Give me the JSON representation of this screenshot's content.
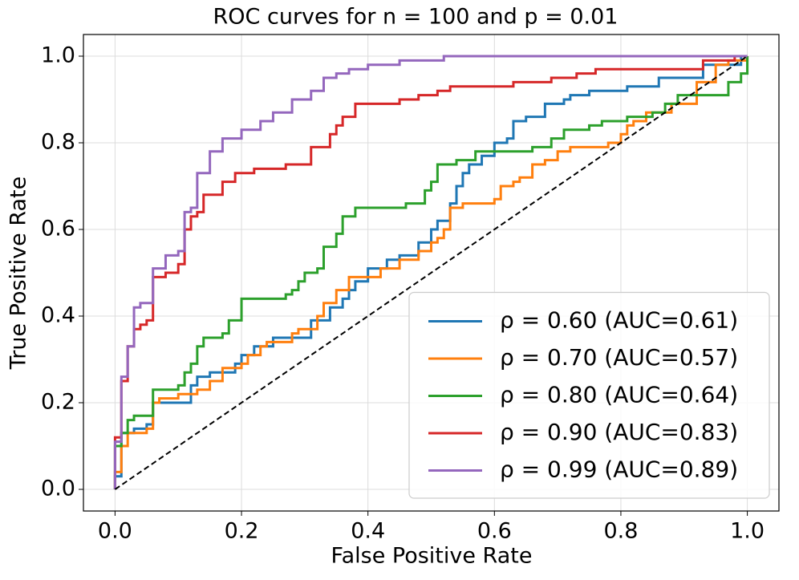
{
  "chart_data": {
    "type": "line",
    "title": "ROC curves for n = 100 and p = 0.01",
    "xlabel": "False Positive Rate",
    "ylabel": "True Positive Rate",
    "xlim": [
      -0.05,
      1.05
    ],
    "ylim": [
      -0.05,
      1.05
    ],
    "xticks": [
      {
        "value": 0,
        "label": "0.0"
      },
      {
        "value": 0.2,
        "label": "0.2"
      },
      {
        "value": 0.4,
        "label": "0.4"
      },
      {
        "value": 0.6,
        "label": "0.6"
      },
      {
        "value": 0.8,
        "label": "0.8"
      },
      {
        "value": 1,
        "label": "1.0"
      }
    ],
    "yticks": [
      {
        "value": 0,
        "label": "0.0"
      },
      {
        "value": 0.2,
        "label": "0.2"
      },
      {
        "value": 0.4,
        "label": "0.4"
      },
      {
        "value": 0.6,
        "label": "0.6"
      },
      {
        "value": 0.8,
        "label": "0.8"
      },
      {
        "value": 1,
        "label": "1.0"
      }
    ],
    "grid": true,
    "legend": "lower right",
    "reference_line": {
      "x": [
        0,
        1
      ],
      "values": [
        0,
        1
      ],
      "color": "#000000",
      "style": "dashed"
    },
    "series": [
      {
        "name": "ρ = 0.60 (AUC=0.61)",
        "color": "#1f77b4",
        "x": [
          0,
          0,
          0.01,
          0.01,
          0.03,
          0.03,
          0.05,
          0.05,
          0.06,
          0.06,
          0.12,
          0.12,
          0.13,
          0.13,
          0.15,
          0.15,
          0.19,
          0.19,
          0.2,
          0.2,
          0.22,
          0.22,
          0.25,
          0.25,
          0.31,
          0.31,
          0.34,
          0.34,
          0.36,
          0.36,
          0.37,
          0.37,
          0.38,
          0.38,
          0.4,
          0.4,
          0.43,
          0.43,
          0.45,
          0.45,
          0.48,
          0.48,
          0.5,
          0.5,
          0.51,
          0.51,
          0.53,
          0.53,
          0.54,
          0.54,
          0.55,
          0.55,
          0.56,
          0.56,
          0.58,
          0.58,
          0.6,
          0.6,
          0.62,
          0.62,
          0.63,
          0.63,
          0.65,
          0.65,
          0.68,
          0.68,
          0.71,
          0.71,
          0.72,
          0.72,
          0.75,
          0.75,
          0.81,
          0.81,
          0.86,
          0.86,
          0.93,
          0.93,
          0.99,
          0.99,
          1
        ],
        "values": [
          0,
          0.03,
          0.03,
          0.13,
          0.13,
          0.14,
          0.14,
          0.15,
          0.15,
          0.2,
          0.2,
          0.24,
          0.24,
          0.26,
          0.26,
          0.27,
          0.27,
          0.29,
          0.29,
          0.31,
          0.31,
          0.33,
          0.33,
          0.35,
          0.35,
          0.39,
          0.39,
          0.42,
          0.42,
          0.44,
          0.44,
          0.46,
          0.46,
          0.48,
          0.48,
          0.51,
          0.51,
          0.53,
          0.53,
          0.54,
          0.54,
          0.57,
          0.57,
          0.6,
          0.6,
          0.62,
          0.62,
          0.66,
          0.66,
          0.7,
          0.7,
          0.73,
          0.73,
          0.75,
          0.75,
          0.77,
          0.77,
          0.8,
          0.8,
          0.81,
          0.81,
          0.85,
          0.85,
          0.86,
          0.86,
          0.89,
          0.89,
          0.9,
          0.9,
          0.91,
          0.91,
          0.92,
          0.92,
          0.93,
          0.93,
          0.95,
          0.95,
          0.98,
          0.98,
          1,
          1
        ]
      },
      {
        "name": "ρ = 0.70 (AUC=0.57)",
        "color": "#ff7f0e",
        "x": [
          0,
          0,
          0.01,
          0.01,
          0.02,
          0.02,
          0.05,
          0.05,
          0.06,
          0.06,
          0.07,
          0.07,
          0.1,
          0.1,
          0.13,
          0.13,
          0.15,
          0.15,
          0.17,
          0.17,
          0.2,
          0.2,
          0.21,
          0.21,
          0.23,
          0.23,
          0.24,
          0.24,
          0.28,
          0.28,
          0.29,
          0.29,
          0.32,
          0.32,
          0.33,
          0.33,
          0.35,
          0.35,
          0.37,
          0.37,
          0.42,
          0.42,
          0.45,
          0.45,
          0.48,
          0.48,
          0.5,
          0.5,
          0.51,
          0.51,
          0.52,
          0.52,
          0.53,
          0.53,
          0.55,
          0.55,
          0.6,
          0.6,
          0.61,
          0.61,
          0.63,
          0.63,
          0.64,
          0.64,
          0.66,
          0.66,
          0.68,
          0.68,
          0.7,
          0.7,
          0.72,
          0.72,
          0.78,
          0.78,
          0.8,
          0.8,
          0.81,
          0.81,
          0.82,
          0.82,
          0.84,
          0.84,
          0.88,
          0.88,
          0.92,
          0.92,
          0.95,
          0.95,
          0.97,
          0.97,
          1,
          1
        ],
        "values": [
          0,
          0.04,
          0.04,
          0.1,
          0.1,
          0.13,
          0.13,
          0.14,
          0.14,
          0.2,
          0.2,
          0.21,
          0.21,
          0.22,
          0.22,
          0.23,
          0.23,
          0.25,
          0.25,
          0.28,
          0.28,
          0.29,
          0.29,
          0.31,
          0.31,
          0.33,
          0.33,
          0.34,
          0.34,
          0.36,
          0.36,
          0.37,
          0.37,
          0.4,
          0.4,
          0.43,
          0.43,
          0.46,
          0.46,
          0.49,
          0.49,
          0.51,
          0.51,
          0.53,
          0.53,
          0.55,
          0.55,
          0.57,
          0.57,
          0.58,
          0.58,
          0.6,
          0.6,
          0.65,
          0.65,
          0.66,
          0.66,
          0.67,
          0.67,
          0.7,
          0.7,
          0.71,
          0.71,
          0.72,
          0.72,
          0.75,
          0.75,
          0.76,
          0.76,
          0.78,
          0.78,
          0.79,
          0.79,
          0.8,
          0.8,
          0.82,
          0.82,
          0.84,
          0.84,
          0.85,
          0.85,
          0.87,
          0.87,
          0.89,
          0.89,
          0.94,
          0.94,
          0.98,
          0.98,
          0.99,
          0.99,
          1
        ]
      },
      {
        "name": "ρ = 0.80 (AUC=0.64)",
        "color": "#2ca02c",
        "x": [
          0,
          0,
          0.01,
          0.01,
          0.02,
          0.02,
          0.03,
          0.03,
          0.06,
          0.06,
          0.1,
          0.1,
          0.11,
          0.11,
          0.12,
          0.12,
          0.13,
          0.13,
          0.14,
          0.14,
          0.17,
          0.17,
          0.18,
          0.18,
          0.2,
          0.2,
          0.27,
          0.27,
          0.28,
          0.28,
          0.29,
          0.29,
          0.3,
          0.3,
          0.32,
          0.32,
          0.33,
          0.33,
          0.35,
          0.35,
          0.36,
          0.36,
          0.38,
          0.38,
          0.46,
          0.46,
          0.49,
          0.49,
          0.5,
          0.5,
          0.51,
          0.51,
          0.54,
          0.54,
          0.57,
          0.57,
          0.61,
          0.61,
          0.66,
          0.66,
          0.69,
          0.69,
          0.71,
          0.71,
          0.75,
          0.75,
          0.77,
          0.77,
          0.81,
          0.81,
          0.85,
          0.85,
          0.87,
          0.87,
          0.89,
          0.89,
          0.97,
          0.97,
          0.99,
          0.99,
          1,
          1
        ],
        "values": [
          0,
          0.1,
          0.1,
          0.13,
          0.13,
          0.16,
          0.16,
          0.17,
          0.17,
          0.23,
          0.23,
          0.24,
          0.24,
          0.27,
          0.27,
          0.29,
          0.29,
          0.33,
          0.33,
          0.35,
          0.35,
          0.36,
          0.36,
          0.39,
          0.39,
          0.44,
          0.44,
          0.45,
          0.45,
          0.46,
          0.46,
          0.48,
          0.48,
          0.5,
          0.5,
          0.51,
          0.51,
          0.56,
          0.56,
          0.59,
          0.59,
          0.63,
          0.63,
          0.65,
          0.65,
          0.66,
          0.66,
          0.69,
          0.69,
          0.71,
          0.71,
          0.75,
          0.75,
          0.76,
          0.76,
          0.78,
          0.78,
          0.78,
          0.78,
          0.79,
          0.79,
          0.81,
          0.81,
          0.83,
          0.83,
          0.84,
          0.84,
          0.85,
          0.85,
          0.86,
          0.86,
          0.87,
          0.87,
          0.89,
          0.89,
          0.91,
          0.91,
          0.94,
          0.94,
          0.96,
          0.96,
          1
        ]
      },
      {
        "name": "ρ = 0.90 (AUC=0.83)",
        "color": "#d62728",
        "x": [
          0,
          0,
          0.01,
          0.01,
          0.02,
          0.02,
          0.03,
          0.03,
          0.04,
          0.04,
          0.05,
          0.05,
          0.06,
          0.06,
          0.08,
          0.08,
          0.1,
          0.1,
          0.11,
          0.11,
          0.12,
          0.12,
          0.13,
          0.13,
          0.14,
          0.14,
          0.17,
          0.17,
          0.19,
          0.19,
          0.22,
          0.22,
          0.27,
          0.27,
          0.31,
          0.31,
          0.34,
          0.34,
          0.35,
          0.35,
          0.36,
          0.36,
          0.38,
          0.38,
          0.45,
          0.45,
          0.48,
          0.48,
          0.51,
          0.51,
          0.53,
          0.53,
          0.63,
          0.63,
          0.69,
          0.69,
          0.73,
          0.73,
          0.76,
          0.76,
          0.93,
          0.93,
          0.98,
          0.98,
          1
        ],
        "values": [
          0,
          0.12,
          0.12,
          0.25,
          0.25,
          0.33,
          0.33,
          0.37,
          0.37,
          0.38,
          0.38,
          0.39,
          0.39,
          0.49,
          0.49,
          0.5,
          0.5,
          0.52,
          0.52,
          0.6,
          0.6,
          0.63,
          0.63,
          0.64,
          0.64,
          0.68,
          0.68,
          0.71,
          0.71,
          0.73,
          0.73,
          0.74,
          0.74,
          0.75,
          0.75,
          0.79,
          0.79,
          0.82,
          0.82,
          0.84,
          0.84,
          0.86,
          0.86,
          0.89,
          0.89,
          0.9,
          0.9,
          0.91,
          0.91,
          0.92,
          0.92,
          0.93,
          0.93,
          0.94,
          0.94,
          0.95,
          0.95,
          0.96,
          0.96,
          0.97,
          0.97,
          0.99,
          0.99,
          1,
          1
        ]
      },
      {
        "name": "ρ = 0.99 (AUC=0.89)",
        "color": "#9467bd",
        "x": [
          0,
          0,
          0.01,
          0.01,
          0.02,
          0.02,
          0.03,
          0.03,
          0.04,
          0.04,
          0.06,
          0.06,
          0.08,
          0.08,
          0.1,
          0.1,
          0.11,
          0.11,
          0.12,
          0.12,
          0.13,
          0.13,
          0.15,
          0.15,
          0.17,
          0.17,
          0.2,
          0.2,
          0.23,
          0.23,
          0.25,
          0.25,
          0.28,
          0.28,
          0.31,
          0.31,
          0.33,
          0.33,
          0.35,
          0.35,
          0.37,
          0.37,
          0.4,
          0.4,
          0.45,
          0.45,
          0.52,
          0.52,
          1
        ],
        "values": [
          0,
          0.11,
          0.11,
          0.26,
          0.26,
          0.33,
          0.33,
          0.42,
          0.42,
          0.43,
          0.43,
          0.51,
          0.51,
          0.54,
          0.54,
          0.55,
          0.55,
          0.64,
          0.64,
          0.65,
          0.65,
          0.73,
          0.73,
          0.78,
          0.78,
          0.81,
          0.81,
          0.83,
          0.83,
          0.85,
          0.85,
          0.87,
          0.87,
          0.9,
          0.9,
          0.92,
          0.92,
          0.95,
          0.95,
          0.96,
          0.96,
          0.97,
          0.97,
          0.98,
          0.98,
          0.99,
          0.99,
          1,
          1
        ]
      }
    ]
  }
}
